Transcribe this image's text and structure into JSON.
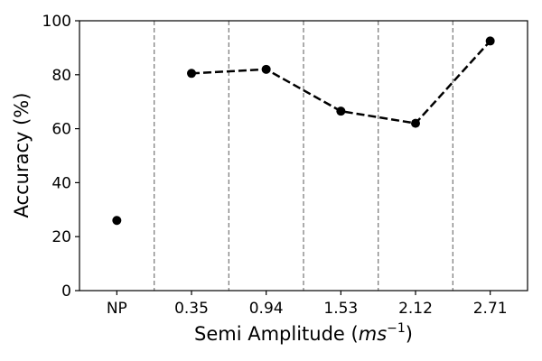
{
  "chart_data": {
    "type": "line",
    "xlabel": "Semi Amplitude",
    "xlabel_unit_base": "ms",
    "xlabel_unit_exp": "−1",
    "ylabel": "Accuracy (%)",
    "categories": [
      "NP",
      "0.35",
      "0.94",
      "1.53",
      "2.12",
      "2.71"
    ],
    "ylim": [
      0,
      100
    ],
    "yticks": [
      "0",
      "20",
      "40",
      "60",
      "80",
      "100"
    ],
    "separators_between_categories": true,
    "points": [
      {
        "x": "NP",
        "y": 26,
        "connected": false
      },
      {
        "x": "0.35",
        "y": 80.5,
        "connected": true
      },
      {
        "x": "0.94",
        "y": 82,
        "connected": true
      },
      {
        "x": "1.53",
        "y": 66.5,
        "connected": true
      },
      {
        "x": "2.12",
        "y": 62,
        "connected": true
      },
      {
        "x": "2.71",
        "y": 92.5,
        "connected": true
      }
    ],
    "line_style": "dashed",
    "marker": "circle",
    "color": "#000000",
    "separator_color": "#808080",
    "grid": false,
    "legend": "none"
  }
}
